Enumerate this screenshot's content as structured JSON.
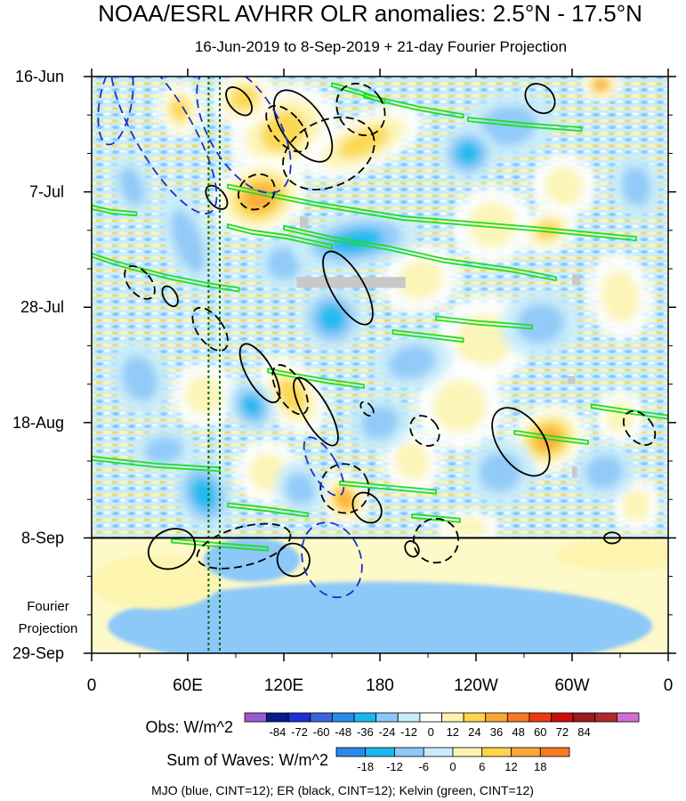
{
  "chart_data": {
    "type": "heatmap",
    "title": "NOAA/ESRL AVHRR OLR anomalies: 2.5°N - 17.5°N",
    "subtitle": "16-Jun-2019 to 8-Sep-2019 + 21-day Fourier Projection",
    "x_ticks": [
      "0",
      "60E",
      "120E",
      "180",
      "120W",
      "60W",
      "0"
    ],
    "x_tick_values": [
      0,
      60,
      120,
      180,
      240,
      300,
      360
    ],
    "y_ticks": [
      "16-Jun",
      "7-Jul",
      "28-Jul",
      "18-Aug",
      "8-Sep",
      "29-Sep"
    ],
    "y_tick_days": [
      0,
      21,
      42,
      63,
      84,
      105
    ],
    "projection_label": [
      "Fourier",
      "Projection"
    ],
    "obs_split_day": 84,
    "reference_lines_lon": [
      73,
      80
    ],
    "obs_colorbar": {
      "label": "Obs: W/m^2",
      "ticks": [
        "-84",
        "-72",
        "-60",
        "-48",
        "-36",
        "-24",
        "-12",
        "0",
        "12",
        "24",
        "36",
        "48",
        "60",
        "72",
        "84"
      ],
      "colors": [
        "#9b59d0",
        "#0b1a8c",
        "#1c2fd0",
        "#3a63e0",
        "#2a8ae8",
        "#18b8f0",
        "#8cc8f8",
        "#c8ecfb",
        "#ffffff",
        "#fdf4b0",
        "#fcd54a",
        "#fba737",
        "#f57a22",
        "#ee3a14",
        "#cc0c0c",
        "#9a1c1c",
        "#b02a2a",
        "#d26fd2"
      ]
    },
    "wave_colorbar": {
      "label": "Sum of Waves: W/m^2",
      "ticks": [
        "-18",
        "-12",
        "-6",
        "0",
        "6",
        "12",
        "18"
      ],
      "colors": [
        "#2a8ae8",
        "#18b8f0",
        "#8cc8f8",
        "#c8ecfb",
        "#fdf4b0",
        "#fcd54a",
        "#fba737",
        "#f57a22"
      ]
    },
    "footer": "MJO (blue, CINT=12); ER (black, CINT=12); Kelvin (green, CINT=12)",
    "series_colors": {
      "mjo": "#1a2fd0",
      "er": "#000000",
      "kelvin": "#22dd22"
    },
    "kelvin_contours": [
      {
        "lon": [
          150,
          168,
          183
        ],
        "day": [
          1.5,
          3.0,
          4.6
        ]
      },
      {
        "lon": [
          170,
          204,
          232
        ],
        "day": [
          3.5,
          5.8,
          7.2
        ]
      },
      {
        "lon": [
          235,
          270,
          306
        ],
        "day": [
          7.8,
          8.8,
          9.6
        ]
      },
      {
        "lon": [
          0,
          12,
          28
        ],
        "day": [
          23.8,
          24.6,
          25.0
        ]
      },
      {
        "lon": [
          85,
          140,
          195,
          280,
          340
        ],
        "day": [
          20.0,
          23.2,
          25.8,
          27.8,
          29.5
        ]
      },
      {
        "lon": [
          85,
          100,
          122,
          150
        ],
        "day": [
          27.2,
          28.3,
          29.2,
          31.0
        ]
      },
      {
        "lon": [
          120,
          150,
          185,
          220,
          262,
          290
        ],
        "day": [
          27.5,
          29.5,
          31.2,
          33.5,
          35.2,
          36.8
        ]
      },
      {
        "lon": [
          0,
          12,
          28,
          48,
          70,
          92
        ],
        "day": [
          32.5,
          33.7,
          35.0,
          36.5,
          37.8,
          38.8
        ]
      },
      {
        "lon": [
          188,
          212,
          232
        ],
        "day": [
          46.5,
          47.3,
          48.0
        ]
      },
      {
        "lon": [
          215,
          240,
          275
        ],
        "day": [
          44.0,
          44.8,
          45.6
        ]
      },
      {
        "lon": [
          110,
          130,
          148,
          170
        ],
        "day": [
          53.5,
          54.6,
          55.5,
          56.4
        ]
      },
      {
        "lon": [
          312,
          335,
          360
        ],
        "day": [
          60.0,
          61.0,
          62.0
        ]
      },
      {
        "lon": [
          264,
          285,
          310
        ],
        "day": [
          64.8,
          65.7,
          66.6
        ]
      },
      {
        "lon": [
          155,
          185,
          215
        ],
        "day": [
          74.0,
          74.8,
          75.6
        ]
      },
      {
        "lon": [
          85,
          110,
          135
        ],
        "day": [
          78.0,
          78.8,
          79.8
        ]
      },
      {
        "lon": [
          200,
          230
        ],
        "day": [
          80.0,
          80.8
        ]
      },
      {
        "lon": [
          50,
          80,
          110
        ],
        "day": [
          84.5,
          85.3,
          86.0
        ]
      },
      {
        "lon": [
          0,
          40,
          80
        ],
        "day": [
          69.5,
          70.8,
          71.5
        ]
      }
    ],
    "er_contours": [
      {
        "lon": 132,
        "day": 9.0,
        "rlon": 13,
        "rday": 7.5,
        "rot": -35,
        "dashed": false
      },
      {
        "lon": 92,
        "day": 4.5,
        "rlon": 6,
        "rday": 3.0,
        "rot": -40,
        "dashed": false
      },
      {
        "lon": 122,
        "day": 9.5,
        "rlon": 9,
        "rday": 5.0,
        "rot": -40,
        "dashed": true
      },
      {
        "lon": 168,
        "day": 6.0,
        "rlon": 14,
        "rday": 5.0,
        "rot": -35,
        "dashed": true
      },
      {
        "lon": 148,
        "day": 14.0,
        "rlon": 30,
        "rday": 6.0,
        "rot": -25,
        "dashed": true
      },
      {
        "lon": 103,
        "day": 21.0,
        "rlon": 12,
        "rday": 3.0,
        "rot": -40,
        "dashed": true
      },
      {
        "lon": 280,
        "day": 4.0,
        "rlon": 8,
        "rday": 3.0,
        "rot": -45,
        "dashed": false
      },
      {
        "lon": 78,
        "day": 22.0,
        "rlon": 5,
        "rday": 2.5,
        "rot": -40,
        "dashed": false
      },
      {
        "lon": 160,
        "day": 38.5,
        "rlon": 10,
        "rday": 7.5,
        "rot": -30,
        "dashed": false
      },
      {
        "lon": 30,
        "day": 37.5,
        "rlon": 7,
        "rday": 3.5,
        "rot": -40,
        "dashed": true
      },
      {
        "lon": 49,
        "day": 40.0,
        "rlon": 4,
        "rday": 2.0,
        "rot": -30,
        "dashed": false
      },
      {
        "lon": 74,
        "day": 46.0,
        "rlon": 8,
        "rday": 4.5,
        "rot": -35,
        "dashed": true
      },
      {
        "lon": 105,
        "day": 54.0,
        "rlon": 8,
        "rday": 6.0,
        "rot": -30,
        "dashed": false
      },
      {
        "lon": 124,
        "day": 57.0,
        "rlon": 8,
        "rday": 5.0,
        "rot": -30,
        "dashed": true
      },
      {
        "lon": 140,
        "day": 61.0,
        "rlon": 8,
        "rday": 7.0,
        "rot": -30,
        "dashed": false
      },
      {
        "lon": 172,
        "day": 60.5,
        "rlon": 3,
        "rday": 1.5,
        "rot": -40,
        "dashed": true
      },
      {
        "lon": 208,
        "day": 64.5,
        "rlon": 8,
        "rday": 3.0,
        "rot": -40,
        "dashed": true
      },
      {
        "lon": 268,
        "day": 66.5,
        "rlon": 14,
        "rday": 7.0,
        "rot": -35,
        "dashed": false
      },
      {
        "lon": 342,
        "day": 64.0,
        "rlon": 8,
        "rday": 3.5,
        "rot": -40,
        "dashed": true
      },
      {
        "lon": 158,
        "day": 75.0,
        "rlon": 15,
        "rday": 4.5,
        "rot": -30,
        "dashed": true
      },
      {
        "lon": 172,
        "day": 78.5,
        "rlon": 8,
        "rday": 3.0,
        "rot": -40,
        "dashed": false
      },
      {
        "lon": 215,
        "day": 84.5,
        "rlon": 14,
        "rday": 4.0,
        "rot": -20,
        "dashed": true
      },
      {
        "lon": 200,
        "day": 86.0,
        "rlon": 4,
        "rday": 1.5,
        "rot": -30,
        "dashed": false
      },
      {
        "lon": 325,
        "day": 84.0,
        "rlon": 5,
        "rday": 1.0,
        "rot": 0,
        "dashed": false
      },
      {
        "lon": 50,
        "day": 86.0,
        "rlon": 15,
        "rday": 3.5,
        "rot": -25,
        "dashed": false
      },
      {
        "lon": 95,
        "day": 85.5,
        "rlon": 30,
        "rday": 3.5,
        "rot": -15,
        "dashed": true
      },
      {
        "lon": 126,
        "day": 88.0,
        "rlon": 10,
        "rday": 3.0,
        "rot": -30,
        "dashed": false
      }
    ],
    "mjo_contours": [
      {
        "lon": 15,
        "day": 4.5,
        "rlon": 10,
        "rday": 8.0,
        "rot": 10
      },
      {
        "lon": 45,
        "day": 10.0,
        "rlon": 18,
        "rday": 17.0,
        "rot": -30
      },
      {
        "lon": 95,
        "day": 9.5,
        "rlon": 22,
        "rday": 13.0,
        "rot": -30
      },
      {
        "lon": 150,
        "day": 88.0,
        "rlon": 18,
        "rday": 7.0,
        "rot": -20
      },
      {
        "lon": 145,
        "day": 71.0,
        "rlon": 8,
        "rday": 6.0,
        "rot": -30
      }
    ],
    "heat_blobs": [
      {
        "lon": 120,
        "day": 10.0,
        "rlon": 35,
        "rday": 8.0,
        "rot": -30,
        "val": 40
      },
      {
        "lon": 105,
        "day": 22.0,
        "rlon": 30,
        "rday": 7.0,
        "rot": -20,
        "val": 50
      },
      {
        "lon": 170,
        "day": 12.0,
        "rlon": 40,
        "rday": 5.0,
        "rot": -25,
        "val": 35
      },
      {
        "lon": 95,
        "day": 4.0,
        "rlon": 20,
        "rday": 5.0,
        "rot": -20,
        "val": 38
      },
      {
        "lon": 55,
        "day": 6.0,
        "rlon": 14,
        "rday": 5.0,
        "rot": -10,
        "val": 32
      },
      {
        "lon": 318,
        "day": 1.5,
        "rlon": 12,
        "rday": 3.0,
        "rot": 0,
        "val": 50
      },
      {
        "lon": 295,
        "day": 20.0,
        "rlon": 20,
        "rday": 6.0,
        "rot": -20,
        "val": 28
      },
      {
        "lon": 250,
        "day": 27.0,
        "rlon": 25,
        "rday": 7.0,
        "rot": -10,
        "val": 24
      },
      {
        "lon": 330,
        "day": 40.0,
        "rlon": 20,
        "rday": 8.0,
        "rot": -10,
        "val": 26
      },
      {
        "lon": 245,
        "day": 48.0,
        "rlon": 30,
        "rday": 8.0,
        "rot": -20,
        "val": 26
      },
      {
        "lon": 205,
        "day": 37.0,
        "rlon": 25,
        "rday": 6.0,
        "rot": -20,
        "val": 24
      },
      {
        "lon": 125,
        "day": 58.0,
        "rlon": 18,
        "rday": 8.0,
        "rot": -35,
        "val": 40
      },
      {
        "lon": 158,
        "day": 77.0,
        "rlon": 14,
        "rday": 5.0,
        "rot": -35,
        "val": 45
      },
      {
        "lon": 285,
        "day": 66.0,
        "rlon": 25,
        "rday": 6.0,
        "rot": -25,
        "val": 45
      },
      {
        "lon": 230,
        "day": 60.0,
        "rlon": 28,
        "rday": 8.0,
        "rot": -15,
        "val": 26
      },
      {
        "lon": 70,
        "day": 58.0,
        "rlon": 20,
        "rday": 6.0,
        "rot": -15,
        "val": 22
      },
      {
        "lon": 330,
        "day": 62.0,
        "rlon": 15,
        "rday": 5.0,
        "rot": 0,
        "val": 26
      },
      {
        "lon": 285,
        "day": 28.0,
        "rlon": 18,
        "rday": 4.0,
        "rot": -20,
        "val": 30
      },
      {
        "lon": 340,
        "day": 78.0,
        "rlon": 15,
        "rday": 5.0,
        "rot": 0,
        "val": 22
      },
      {
        "lon": 110,
        "day": 72.0,
        "rlon": 20,
        "rday": 6.0,
        "rot": -20,
        "val": 22
      },
      {
        "lon": 200,
        "day": 70.0,
        "rlon": 18,
        "rday": 6.0,
        "rot": -20,
        "val": 24
      },
      {
        "lon": 235,
        "day": 82.0,
        "rlon": 20,
        "rday": 3.0,
        "rot": 0,
        "val": 22
      },
      {
        "lon": 120,
        "day": 34.0,
        "rlon": 18,
        "rday": 5.0,
        "rot": -30,
        "val": -28
      },
      {
        "lon": 165,
        "day": 30.0,
        "rlon": 40,
        "rday": 5.0,
        "rot": -10,
        "val": -36
      },
      {
        "lon": 260,
        "day": 9.0,
        "rlon": 30,
        "rday": 6.0,
        "rot": -10,
        "val": -24
      },
      {
        "lon": 235,
        "day": 14.0,
        "rlon": 18,
        "rday": 5.0,
        "rot": -15,
        "val": -32
      },
      {
        "lon": 60,
        "day": 30.0,
        "rlon": 14,
        "rday": 10.0,
        "rot": -20,
        "val": -28
      },
      {
        "lon": 25,
        "day": 20.0,
        "rlon": 12,
        "rday": 6.0,
        "rot": -20,
        "val": -22
      },
      {
        "lon": 100,
        "day": 60.0,
        "rlon": 14,
        "rday": 5.0,
        "rot": -30,
        "val": -30
      },
      {
        "lon": 150,
        "day": 44.0,
        "rlon": 20,
        "rday": 6.0,
        "rot": -25,
        "val": -30
      },
      {
        "lon": 200,
        "day": 52.0,
        "rlon": 25,
        "rday": 5.0,
        "rot": -15,
        "val": -24
      },
      {
        "lon": 280,
        "day": 45.0,
        "rlon": 25,
        "rday": 6.0,
        "rot": -10,
        "val": -24
      },
      {
        "lon": 30,
        "day": 55.0,
        "rlon": 18,
        "rday": 7.0,
        "rot": -20,
        "val": -26
      },
      {
        "lon": 70,
        "day": 76.0,
        "rlon": 18,
        "rday": 7.0,
        "rot": -20,
        "val": -30
      },
      {
        "lon": 130,
        "day": 75.0,
        "rlon": 15,
        "rday": 5.0,
        "rot": -30,
        "val": -28
      },
      {
        "lon": 255,
        "day": 72.0,
        "rlon": 22,
        "rday": 6.0,
        "rot": -20,
        "val": -26
      },
      {
        "lon": 320,
        "day": 72.0,
        "rlon": 20,
        "rday": 5.0,
        "rot": -15,
        "val": -22
      },
      {
        "lon": 180,
        "day": 63.0,
        "rlon": 20,
        "rday": 5.0,
        "rot": -20,
        "val": -22
      },
      {
        "lon": 45,
        "day": 68.0,
        "rlon": 20,
        "rday": 4.0,
        "rot": -10,
        "val": -22
      },
      {
        "lon": 340,
        "day": 20.0,
        "rlon": 15,
        "rday": 6.0,
        "rot": -10,
        "val": -22
      }
    ],
    "missing_data_boxes": [
      {
        "lon0": 128,
        "lon1": 196,
        "day0": 36.5,
        "day1": 38.5
      },
      {
        "lon0": 130,
        "lon1": 135,
        "day0": 25.5,
        "day1": 27.5
      },
      {
        "lon0": 300,
        "lon1": 305,
        "day0": 36.0,
        "day1": 38.0
      },
      {
        "lon0": 297,
        "lon1": 302,
        "day0": 54.5,
        "day1": 56.0
      },
      {
        "lon0": 300,
        "lon1": 303,
        "day0": 71.0,
        "day1": 73.0
      }
    ],
    "projection_blobs": [
      {
        "lon": 180,
        "day": 100.0,
        "rlon": 170,
        "rday": 8.0,
        "val": -6
      },
      {
        "lon": 40,
        "day": 92.0,
        "rlon": 40,
        "rday": 5.0,
        "val": 6
      },
      {
        "lon": 330,
        "day": 87.0,
        "rlon": 40,
        "rday": 3.0,
        "val": 6
      },
      {
        "lon": 100,
        "day": 88.0,
        "rlon": 30,
        "rday": 4.0,
        "val": -6
      }
    ]
  }
}
